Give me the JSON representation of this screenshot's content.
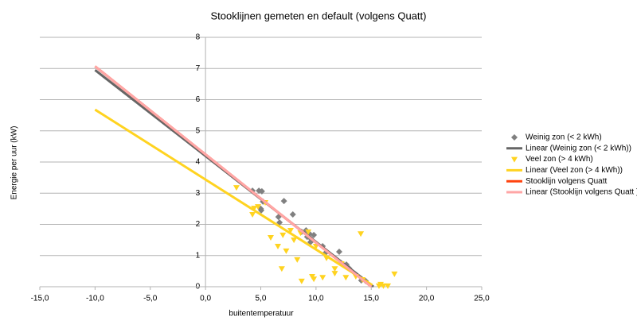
{
  "chart_data": {
    "type": "scatter",
    "title": "Stooklijnen gemeten en default (volgens Quatt)",
    "x_label": "buitentemperatuur",
    "y_label": "Energie per uur (kW)",
    "xlim": [
      -15,
      25
    ],
    "xticks": [
      {
        "value": -15,
        "label": "-15,0"
      },
      {
        "value": -10,
        "label": "-10,0"
      },
      {
        "value": -5,
        "label": "-5,0"
      },
      {
        "value": 0,
        "label": "0,0"
      },
      {
        "value": 5,
        "label": "5,0"
      },
      {
        "value": 10,
        "label": "10,0"
      },
      {
        "value": 15,
        "label": "15,0"
      },
      {
        "value": 20,
        "label": "20,0"
      },
      {
        "value": 25,
        "label": "25,0"
      }
    ],
    "ylim": [
      0,
      8
    ],
    "yticks": [
      0,
      1,
      2,
      3,
      4,
      5,
      6,
      7,
      8
    ],
    "grid": true,
    "legend": "right",
    "series": [
      {
        "name": "Weinig zon (< 2 kWh)",
        "type": "scatter",
        "marker": "diamond",
        "color": "#808080",
        "x": [
          4.25,
          4.83,
          5.1,
          5.0,
          5.04,
          5.2,
          7.1,
          6.6,
          6.7,
          7.9,
          8.7,
          9.1,
          9.2,
          9.4,
          9.5,
          9.5,
          9.8,
          10.6,
          10.9,
          12.1,
          12.75,
          13.0,
          14.1,
          14.5
        ],
        "values": [
          3.08,
          3.08,
          3.06,
          2.5,
          2.45,
          2.73,
          2.75,
          2.24,
          2.06,
          2.32,
          1.76,
          1.81,
          1.6,
          1.7,
          1.55,
          1.43,
          1.66,
          1.3,
          1.1,
          1.12,
          0.71,
          0.59,
          0.2,
          0.18
        ]
      },
      {
        "name": "Linear (Weinig zon (< 2 kWh))",
        "type": "line",
        "color": "#666666",
        "x": [
          -10,
          15.2
        ],
        "values": [
          6.95,
          0
        ]
      },
      {
        "name": "Veel zon (> 4 kWh)",
        "type": "scatter",
        "marker": "triangle",
        "color": "#ffd320",
        "x": [
          2.8,
          4.4,
          4.25,
          4.75,
          5.4,
          5.9,
          6.55,
          6.9,
          7.0,
          7.3,
          7.7,
          8.0,
          8.3,
          8.6,
          8.7,
          9.3,
          9.65,
          9.8,
          10.0,
          10.6,
          10.95,
          11.7,
          11.7,
          12.3,
          12.7,
          13.6,
          14.05,
          14.2,
          15.7,
          16.1,
          16.5,
          17.1,
          15.85
        ],
        "values": [
          3.18,
          2.52,
          2.32,
          2.57,
          2.7,
          1.58,
          1.3,
          0.58,
          1.66,
          1.15,
          1.81,
          1.5,
          0.87,
          1.73,
          0.18,
          1.76,
          0.33,
          0.25,
          1.3,
          0.3,
          0.92,
          0.43,
          0.58,
          0.74,
          0.3,
          0.33,
          1.7,
          0.23,
          0.03,
          0.03,
          0.03,
          0.41,
          0.08
        ]
      },
      {
        "name": "Linear (Veel zon (> 4 kWh))",
        "type": "line",
        "color": "#ffd320",
        "x": [
          -10,
          15.1
        ],
        "values": [
          5.68,
          0.05
        ]
      },
      {
        "name": "Stooklijn volgens Quatt",
        "type": "line",
        "color": "#ff420e",
        "x": [
          -10,
          15
        ],
        "values": [
          7.07,
          0
        ]
      },
      {
        "name": "Linear (Stooklijn volgens Quatt )",
        "type": "line",
        "color": "#ffa6a6",
        "x": [
          -10,
          15
        ],
        "values": [
          7.07,
          0
        ]
      }
    ]
  }
}
